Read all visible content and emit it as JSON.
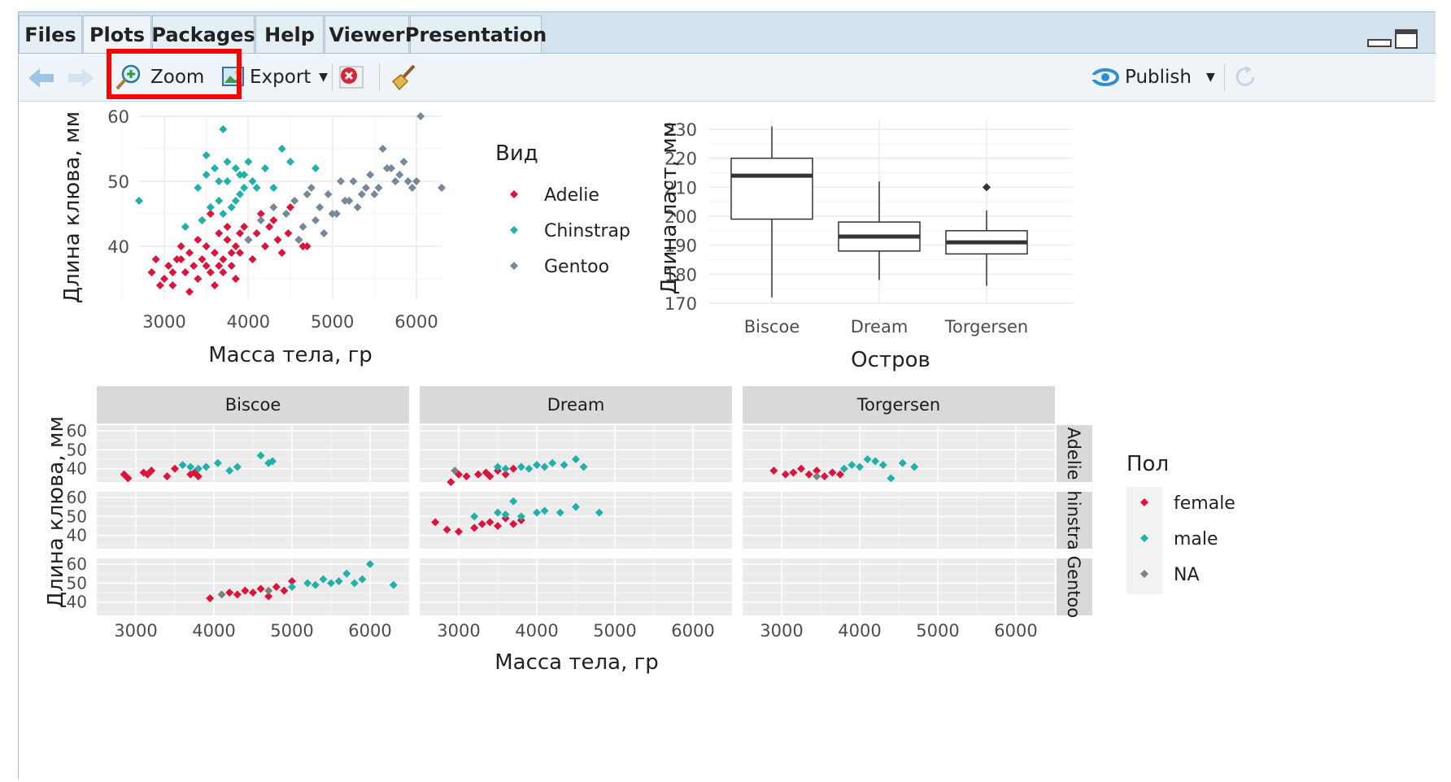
{
  "tabs": [
    {
      "label": "Files",
      "active": false
    },
    {
      "label": "Plots",
      "active": true
    },
    {
      "label": "Packages",
      "active": false
    },
    {
      "label": "Help",
      "active": false
    },
    {
      "label": "Viewer",
      "active": false
    },
    {
      "label": "Presentation",
      "active": false
    }
  ],
  "toolbar": {
    "zoom_label": "Zoom",
    "export_label": "Export",
    "publish_label": "Publish"
  },
  "colors": {
    "adelie": "#dc143c",
    "chinstrap": "#20b2aa",
    "gentoo": "#778899",
    "female": "#dc143c",
    "male": "#20b2aa",
    "na": "#808080",
    "highlight": "#ff0000"
  },
  "chart_data": [
    {
      "type": "scatter",
      "xlabel": "Масса тела, гр",
      "ylabel": "Длина клюва, мм",
      "x_ticks": [
        "3000",
        "4000",
        "5000",
        "6000"
      ],
      "y_ticks": [
        "40",
        "50",
        "60"
      ],
      "xlim": [
        2700,
        6300
      ],
      "ylim": [
        32,
        60
      ],
      "legend": {
        "title": "Вид",
        "items": [
          "Adelie",
          "Chinstrap",
          "Gentoo"
        ]
      },
      "series": [
        {
          "name": "Adelie",
          "x": [
            2850,
            2900,
            3000,
            3050,
            3100,
            3150,
            3200,
            3250,
            3300,
            3350,
            3400,
            3450,
            3500,
            3550,
            3600,
            3650,
            3700,
            3750,
            3800,
            3850,
            3900,
            3950,
            4000,
            4050,
            4100,
            4200,
            4300,
            4400,
            4500,
            4600,
            4700,
            3400,
            3500,
            3600,
            3700,
            3800,
            3900,
            3300,
            3200,
            3100,
            2950,
            3450,
            3550,
            3650,
            3750,
            3850,
            4150,
            4250,
            4350,
            4475,
            4650
          ],
          "y": [
            36,
            38,
            35,
            37,
            34,
            38,
            40,
            36,
            39,
            37,
            41,
            38,
            40,
            36,
            39,
            42,
            38,
            41,
            37,
            40,
            39,
            43,
            41,
            38,
            42,
            40,
            44,
            39,
            46,
            41,
            40,
            35,
            37,
            34,
            36,
            39,
            42,
            33,
            38,
            36,
            34,
            44,
            45,
            37,
            43,
            35,
            45,
            43,
            41,
            42,
            40
          ]
        },
        {
          "name": "Chinstrap",
          "x": [
            2700,
            3250,
            3400,
            3500,
            3550,
            3600,
            3650,
            3700,
            3750,
            3800,
            3850,
            3900,
            3950,
            4000,
            4050,
            4100,
            4200,
            4300,
            4400,
            4500,
            4800,
            3450,
            3550,
            3650,
            3750,
            3850,
            3950,
            3500,
            3700,
            3900
          ],
          "y": [
            47,
            43,
            49,
            51,
            46,
            52,
            47,
            58,
            50,
            46,
            52,
            48,
            51,
            53,
            50,
            49,
            52,
            49,
            55,
            53,
            52,
            44,
            46,
            50,
            53,
            47,
            49,
            54,
            45,
            51
          ]
        },
        {
          "name": "Gentoo",
          "x": [
            4000,
            4150,
            4300,
            4450,
            4550,
            4650,
            4750,
            4850,
            4950,
            5050,
            5150,
            5250,
            5350,
            5450,
            5550,
            5650,
            5750,
            5850,
            5950,
            6050,
            6300,
            4600,
            4800,
            5000,
            5200,
            5400,
            5600,
            5800,
            6000,
            4700,
            4900,
            5100,
            5300,
            5500,
            5700,
            5900
          ],
          "y": [
            41,
            44,
            46,
            45,
            47,
            43,
            49,
            46,
            48,
            45,
            47,
            50,
            48,
            51,
            49,
            52,
            50,
            53,
            49,
            60,
            49,
            41,
            44,
            45,
            47,
            49,
            55,
            51,
            50,
            48,
            42,
            50,
            46,
            48,
            52,
            50
          ]
        }
      ]
    },
    {
      "type": "box",
      "xlabel": "Остров",
      "ylabel": "Длина ласт, мм",
      "categories": [
        "Biscoe",
        "Dream",
        "Torgersen"
      ],
      "y_ticks": [
        "170",
        "180",
        "190",
        "200",
        "210",
        "220",
        "230"
      ],
      "ylim": [
        170,
        231
      ],
      "boxes": [
        {
          "category": "Biscoe",
          "min": 172,
          "q1": 199,
          "median": 214,
          "q3": 220,
          "max": 231,
          "outliers": []
        },
        {
          "category": "Dream",
          "min": 178,
          "q1": 188,
          "median": 193,
          "q3": 198,
          "max": 212,
          "outliers": []
        },
        {
          "category": "Torgersen",
          "min": 176,
          "q1": 187,
          "median": 191,
          "q3": 195,
          "max": 202,
          "outliers": [
            210
          ]
        }
      ]
    },
    {
      "type": "scatter",
      "faceted": true,
      "xlabel": "Масса тела, гр",
      "ylabel": "Длина клюва, мм",
      "col_facets": [
        "Biscoe",
        "Dream",
        "Torgersen"
      ],
      "row_facets": [
        "Adelie",
        "hinstra",
        "Gentoo"
      ],
      "x_ticks": [
        "3000",
        "4000",
        "5000",
        "6000"
      ],
      "y_ticks": [
        "40",
        "50",
        "60"
      ],
      "xlim": [
        2500,
        6500
      ],
      "ylim": [
        33,
        63
      ],
      "legend": {
        "title": "Пол",
        "items": [
          "female",
          "male",
          "NA"
        ]
      },
      "panels": [
        {
          "col": "Biscoe",
          "row": "Adelie",
          "female": {
            "x": [
              2850,
              2900,
              3100,
              3150,
              3200,
              3400,
              3500,
              3700,
              3750,
              3800
            ],
            "y": [
              37,
              35,
              38,
              37,
              39,
              36,
              40,
              37,
              38,
              36
            ]
          },
          "male": {
            "x": [
              3600,
              3700,
              3800,
              3900,
              4050,
              4200,
              4300,
              4600,
              4700,
              4750
            ],
            "y": [
              42,
              41,
              40,
              41,
              43,
              39,
              41,
              47,
              43,
              44
            ]
          },
          "na": {
            "x": [],
            "y": []
          }
        },
        {
          "col": "Dream",
          "row": "Adelie",
          "female": {
            "x": [
              2900,
              3000,
              3100,
              3250,
              3350,
              3400,
              3500,
              3600,
              3700
            ],
            "y": [
              33,
              37,
              36,
              37,
              38,
              36,
              39,
              37,
              40
            ]
          },
          "male": {
            "x": [
              3500,
              3600,
              3800,
              3900,
              4000,
              4100,
              4200,
              4350,
              4500,
              4600
            ],
            "y": [
              41,
              40,
              41,
              40,
              42,
              41,
              43,
              42,
              45,
              41
            ]
          },
          "na": {
            "x": [
              2950
            ],
            "y": [
              39
            ]
          }
        },
        {
          "col": "Torgersen",
          "row": "Adelie",
          "female": {
            "x": [
              2900,
              3050,
              3150,
              3250,
              3350,
              3450,
              3550,
              3650,
              3750
            ],
            "y": [
              39,
              37,
              38,
              40,
              37,
              39,
              36,
              38,
              37
            ]
          },
          "male": {
            "x": [
              3800,
              3900,
              4000,
              4100,
              4200,
              4300,
              4400,
              4550,
              4700
            ],
            "y": [
              40,
              42,
              41,
              45,
              44,
              42,
              35,
              43,
              41
            ]
          },
          "na": {
            "x": [
              3450
            ],
            "y": [
              36
            ]
          }
        },
        {
          "col": "Dream",
          "row": "hinstra",
          "female": {
            "x": [
              2700,
              2850,
              3000,
              3200,
              3300,
              3400,
              3500,
              3600,
              3700,
              3800
            ],
            "y": [
              47,
              43,
              42,
              44,
              46,
              47,
              45,
              49,
              46,
              48
            ]
          },
          "male": {
            "x": [
              3200,
              3500,
              3600,
              3700,
              3800,
              4000,
              4100,
              4300,
              4500,
              4800
            ],
            "y": [
              50,
              52,
              51,
              58,
              50,
              52,
              53,
              52,
              55,
              52
            ]
          },
          "na": {
            "x": [],
            "y": []
          }
        },
        {
          "col": "Biscoe",
          "row": "Gentoo",
          "female": {
            "x": [
              3950,
              4200,
              4300,
              4400,
              4500,
              4600,
              4700,
              4800,
              4900,
              5000
            ],
            "y": [
              42,
              45,
              44,
              46,
              45,
              47,
              43,
              48,
              46,
              51
            ]
          },
          "male": {
            "x": [
              5000,
              5200,
              5300,
              5400,
              5500,
              5600,
              5700,
              5800,
              5900,
              6000,
              6300
            ],
            "y": [
              48,
              50,
              49,
              52,
              50,
              51,
              55,
              50,
              52,
              60,
              49
            ]
          },
          "na": {
            "x": [
              4100,
              4700
            ],
            "y": [
              44,
              46
            ]
          }
        }
      ]
    }
  ]
}
